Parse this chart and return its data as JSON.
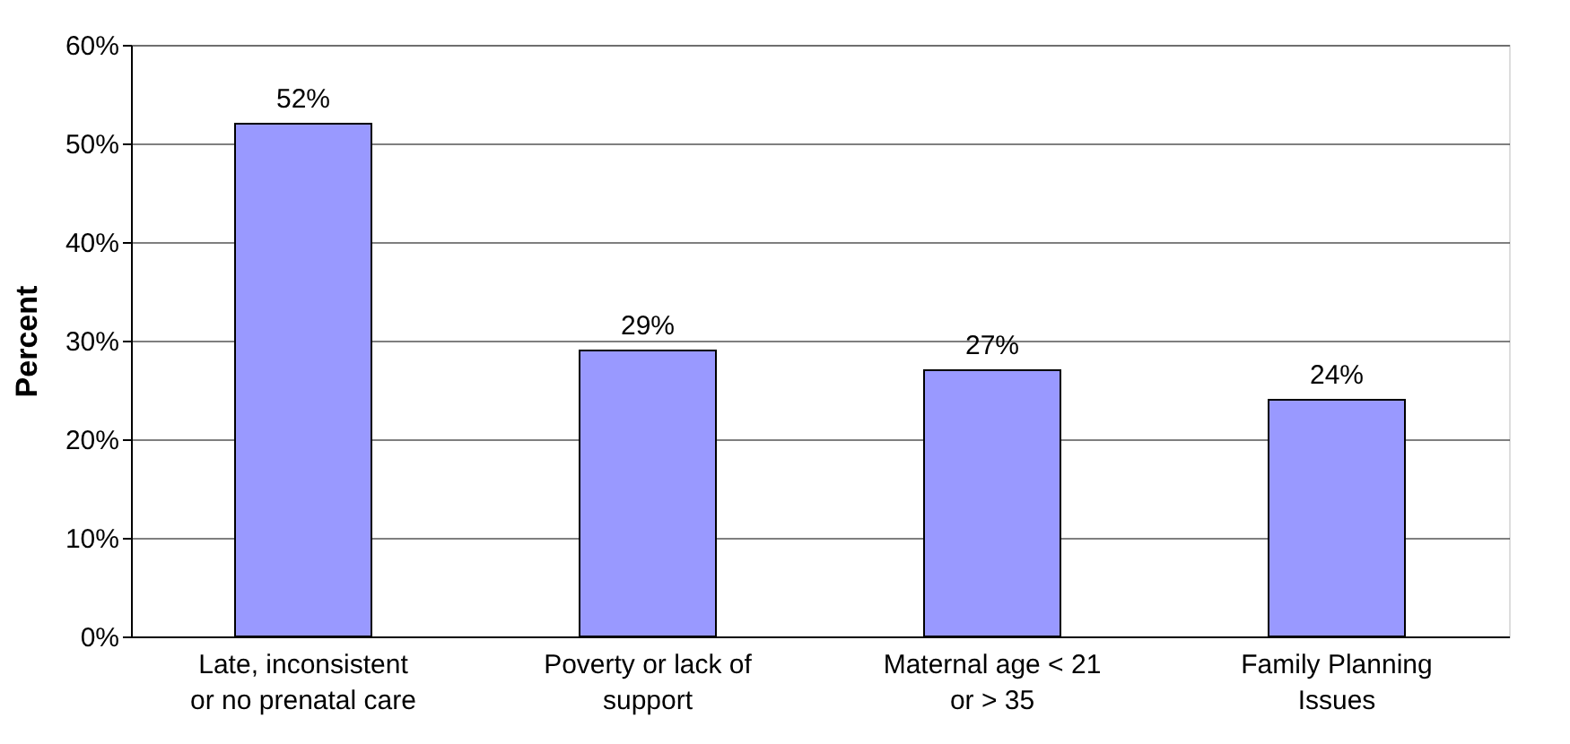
{
  "chart_data": {
    "type": "bar",
    "ylabel": "Percent",
    "categories": [
      "Late, inconsistent or no prenatal care",
      "Poverty or lack of support",
      "Maternal age < 21 or > 35",
      "Family Planning Issues"
    ],
    "values": [
      52,
      29,
      27,
      24
    ],
    "color": "#9999ff",
    "value_labels": [
      "52%",
      "29%",
      "27%",
      "24%"
    ],
    "ylim": [
      0,
      60
    ],
    "yticks": [
      {
        "value": 0,
        "label": "0%"
      },
      {
        "value": 10,
        "label": "10%"
      },
      {
        "value": 20,
        "label": "20%"
      },
      {
        "value": 30,
        "label": "30%"
      },
      {
        "value": 40,
        "label": "40%"
      },
      {
        "value": 50,
        "label": "50%"
      },
      {
        "value": 60,
        "label": "60%"
      }
    ],
    "grid": "y"
  }
}
